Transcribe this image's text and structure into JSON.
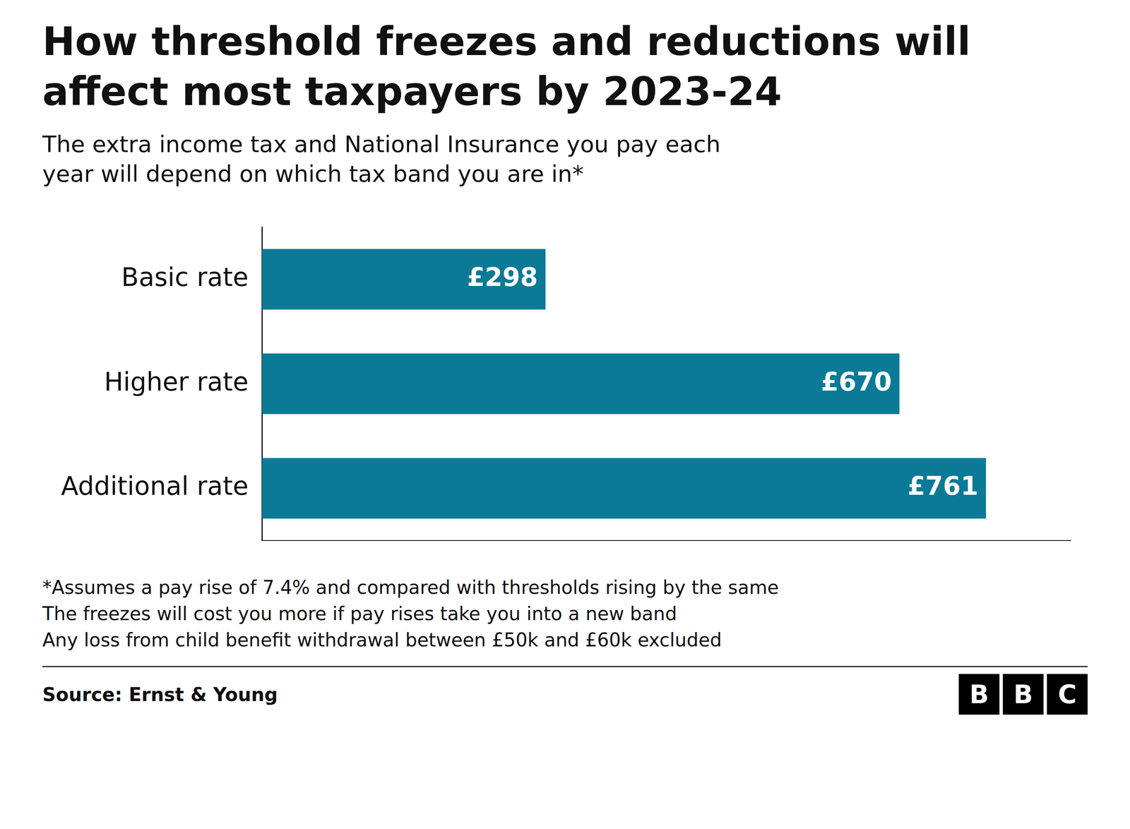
{
  "chart_data": {
    "type": "bar",
    "orientation": "horizontal",
    "title": [
      "How threshold freezes and reductions will",
      "affect most taxpayers by 2023-24"
    ],
    "subtitle": [
      "The extra income tax and National Insurance you pay each",
      "year will depend on which tax band you are in*"
    ],
    "categories": [
      "Basic rate",
      "Higher rate",
      "Additional rate"
    ],
    "values": [
      298,
      670,
      761
    ],
    "value_labels": [
      "£298",
      "£670",
      "£761"
    ],
    "data_labels": true,
    "color": "#0b7a96",
    "xlim": [
      0,
      850
    ],
    "tick_labels": "y",
    "grid": false,
    "annotations": [
      "*Assumes a pay rise of 7.4% and compared with thresholds rising by the same",
      "The freezes will cost you more if pay rises take you into a new band",
      "Any loss from child benefit withdrawal between £50k and £60k excluded"
    ],
    "source": "Source: Ernst & Young",
    "logo": "BBC"
  }
}
